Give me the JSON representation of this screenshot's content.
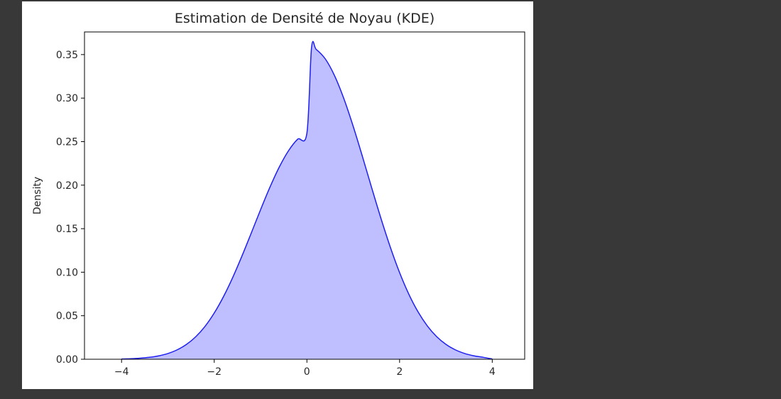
{
  "chart_data": {
    "type": "area",
    "title": "Estimation de Densité de Noyau (KDE)",
    "xlabel": "",
    "ylabel": "Density",
    "xlim": [
      -4.8,
      4.7
    ],
    "ylim": [
      0,
      0.376
    ],
    "xticks": [
      -4,
      -2,
      0,
      2,
      4
    ],
    "xtick_labels": [
      "−4",
      "−2",
      "0",
      "2",
      "4"
    ],
    "yticks": [
      0.0,
      0.05,
      0.1,
      0.15,
      0.2,
      0.25,
      0.3,
      0.35
    ],
    "ytick_labels": [
      "0.00",
      "0.05",
      "0.10",
      "0.15",
      "0.20",
      "0.25",
      "0.30",
      "0.35"
    ],
    "grid": false,
    "colors": {
      "line": "#1f1ff0",
      "fill": "#bfbfff"
    },
    "series": [
      {
        "x": [
          -4.0,
          -3.8,
          -3.6,
          -3.4,
          -3.2,
          -3.0,
          -2.8,
          -2.6,
          -2.4,
          -2.2,
          -2.0,
          -1.8,
          -1.6,
          -1.4,
          -1.2,
          -1.0,
          -0.8,
          -0.6,
          -0.4,
          -0.2,
          0.0,
          0.1,
          0.2,
          0.4,
          0.6,
          0.8,
          1.0,
          1.2,
          1.4,
          1.6,
          1.8,
          2.0,
          2.2,
          2.4,
          2.6,
          2.8,
          3.0,
          3.2,
          3.4,
          3.6,
          3.8,
          4.0
        ],
        "y": [
          0.0003,
          0.0006,
          0.0012,
          0.0022,
          0.0039,
          0.0066,
          0.0108,
          0.017,
          0.0258,
          0.0377,
          0.0531,
          0.072,
          0.0941,
          0.1188,
          0.1451,
          0.1718,
          0.1974,
          0.2204,
          0.2393,
          0.2528,
          0.2598,
          0.358,
          0.356,
          0.3448,
          0.3254,
          0.299,
          0.2674,
          0.2326,
          0.1966,
          0.1615,
          0.1288,
          0.0996,
          0.0747,
          0.0543,
          0.0382,
          0.026,
          0.0171,
          0.0109,
          0.0067,
          0.004,
          0.0023,
          0.0003
        ]
      }
    ]
  }
}
